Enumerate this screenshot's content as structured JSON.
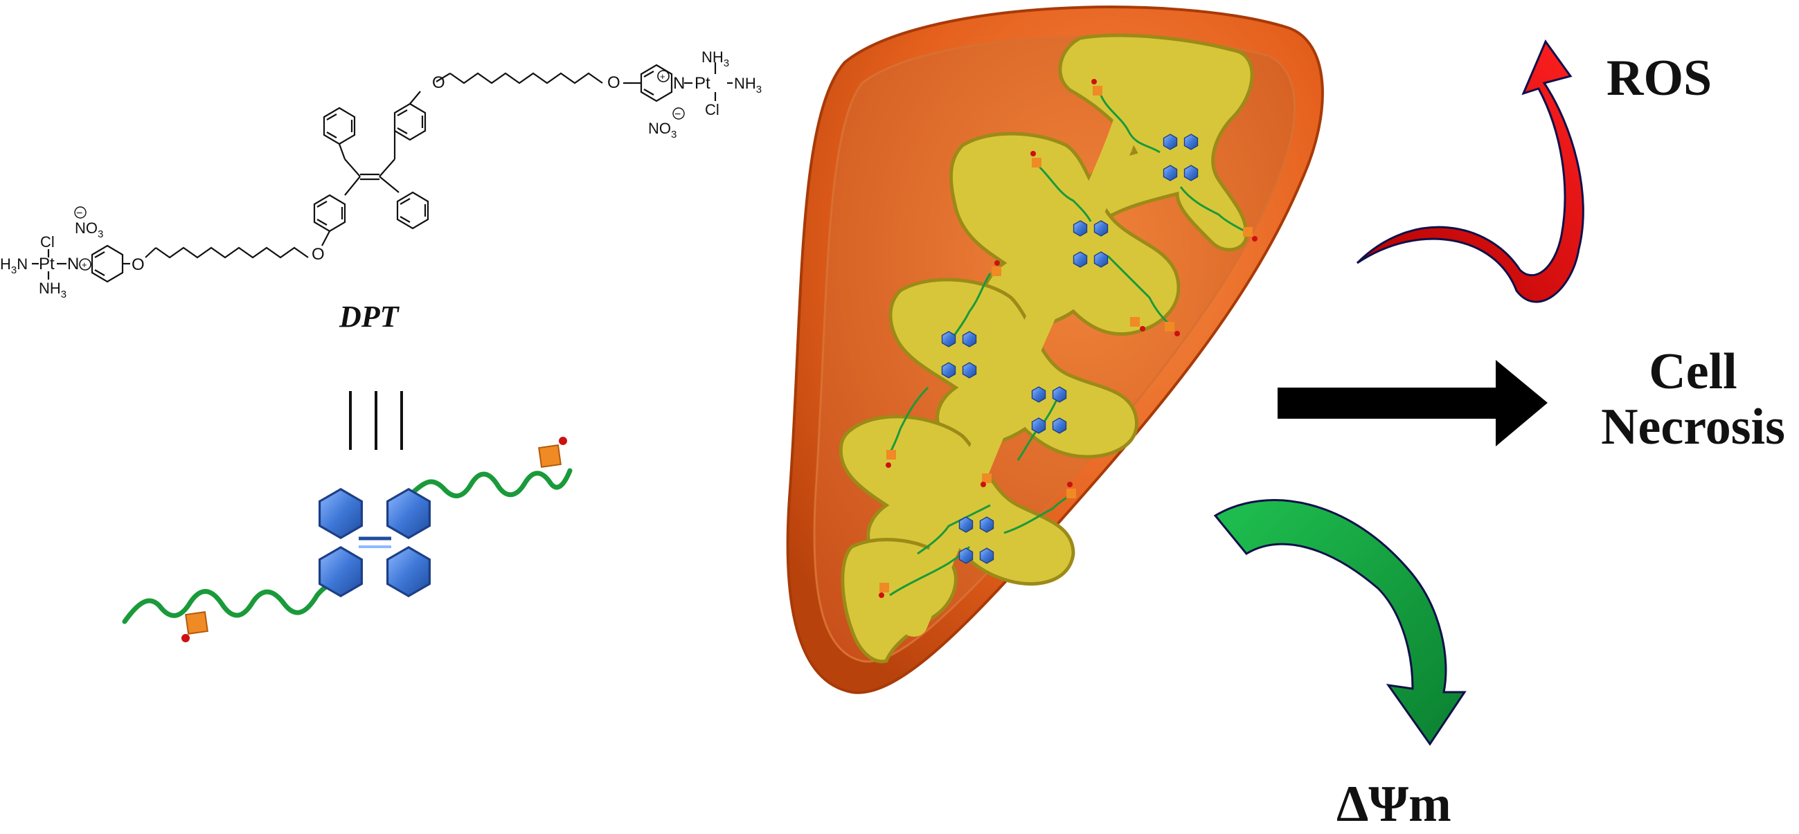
{
  "structure": {
    "compound_name": "DPT",
    "equivalence_symbol": "|||",
    "atoms": {
      "oxygen": "O",
      "nitrogen": "N",
      "platinum": "Pt",
      "chlorine": "Cl",
      "ammine": "NH",
      "ammine_sub": "3",
      "ammine_left": "H",
      "ammine_left_sub": "3",
      "ammine_left_tail": "N",
      "nitrate": "NO",
      "nitrate_sub": "3",
      "plus": "+",
      "minus": "−"
    }
  },
  "outcomes": {
    "ros": "ROS",
    "cell_line1": "Cell",
    "cell_line2": "Necrosis",
    "membrane_potential": "ΔΨm"
  },
  "colors": {
    "mito_outer": "#e5601d",
    "mito_outer_dark": "#b8420c",
    "mito_inner": "#d8c63a",
    "cristae_shadow": "#9c8a18",
    "chain_green": "#1a9a3a",
    "hexagon_blue": "#3f78d8",
    "terminal_orange": "#f08a24",
    "terminal_red": "#cc1111",
    "arrow_red": "#e01010",
    "arrow_green": "#13a03a",
    "arrow_black": "#000000"
  }
}
